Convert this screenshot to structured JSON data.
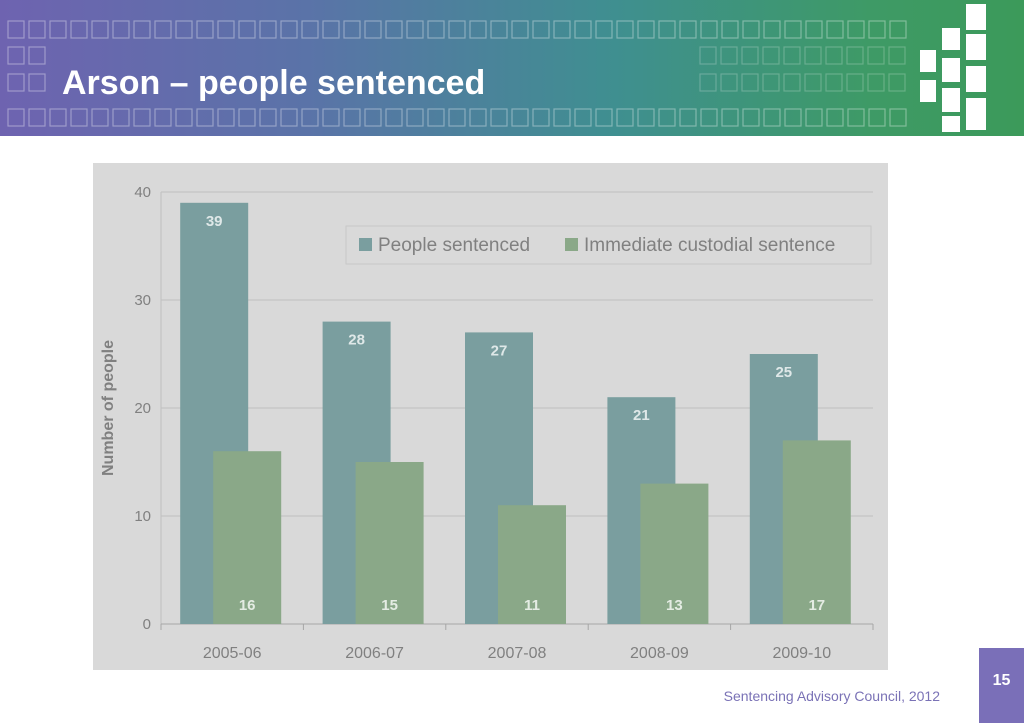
{
  "slide": {
    "title": "Arson – people sentenced",
    "page_number": "15",
    "footer": "Sentencing Advisory Council, 2012"
  },
  "colors": {
    "people_sentenced": "#7a9e9f",
    "immediate_custodial": "#8aa888",
    "panel_background": "#d9d9d9",
    "plot_background": "#d9d9d9",
    "axis_text": "#808080"
  },
  "chart_data": {
    "type": "bar",
    "title": "",
    "xlabel": "",
    "ylabel": "Number of people",
    "ylim": [
      0,
      40
    ],
    "yticks": [
      0,
      10,
      20,
      30,
      40
    ],
    "categories": [
      "2005-06",
      "2006-07",
      "2007-08",
      "2008-09",
      "2009-10"
    ],
    "series": [
      {
        "name": "People sentenced",
        "values": [
          39,
          28,
          27,
          21,
          25
        ]
      },
      {
        "name": "Immediate custodial sentence",
        "values": [
          16,
          15,
          11,
          13,
          17
        ]
      }
    ],
    "grid": true,
    "legend": "top-right",
    "data_labels": true
  }
}
